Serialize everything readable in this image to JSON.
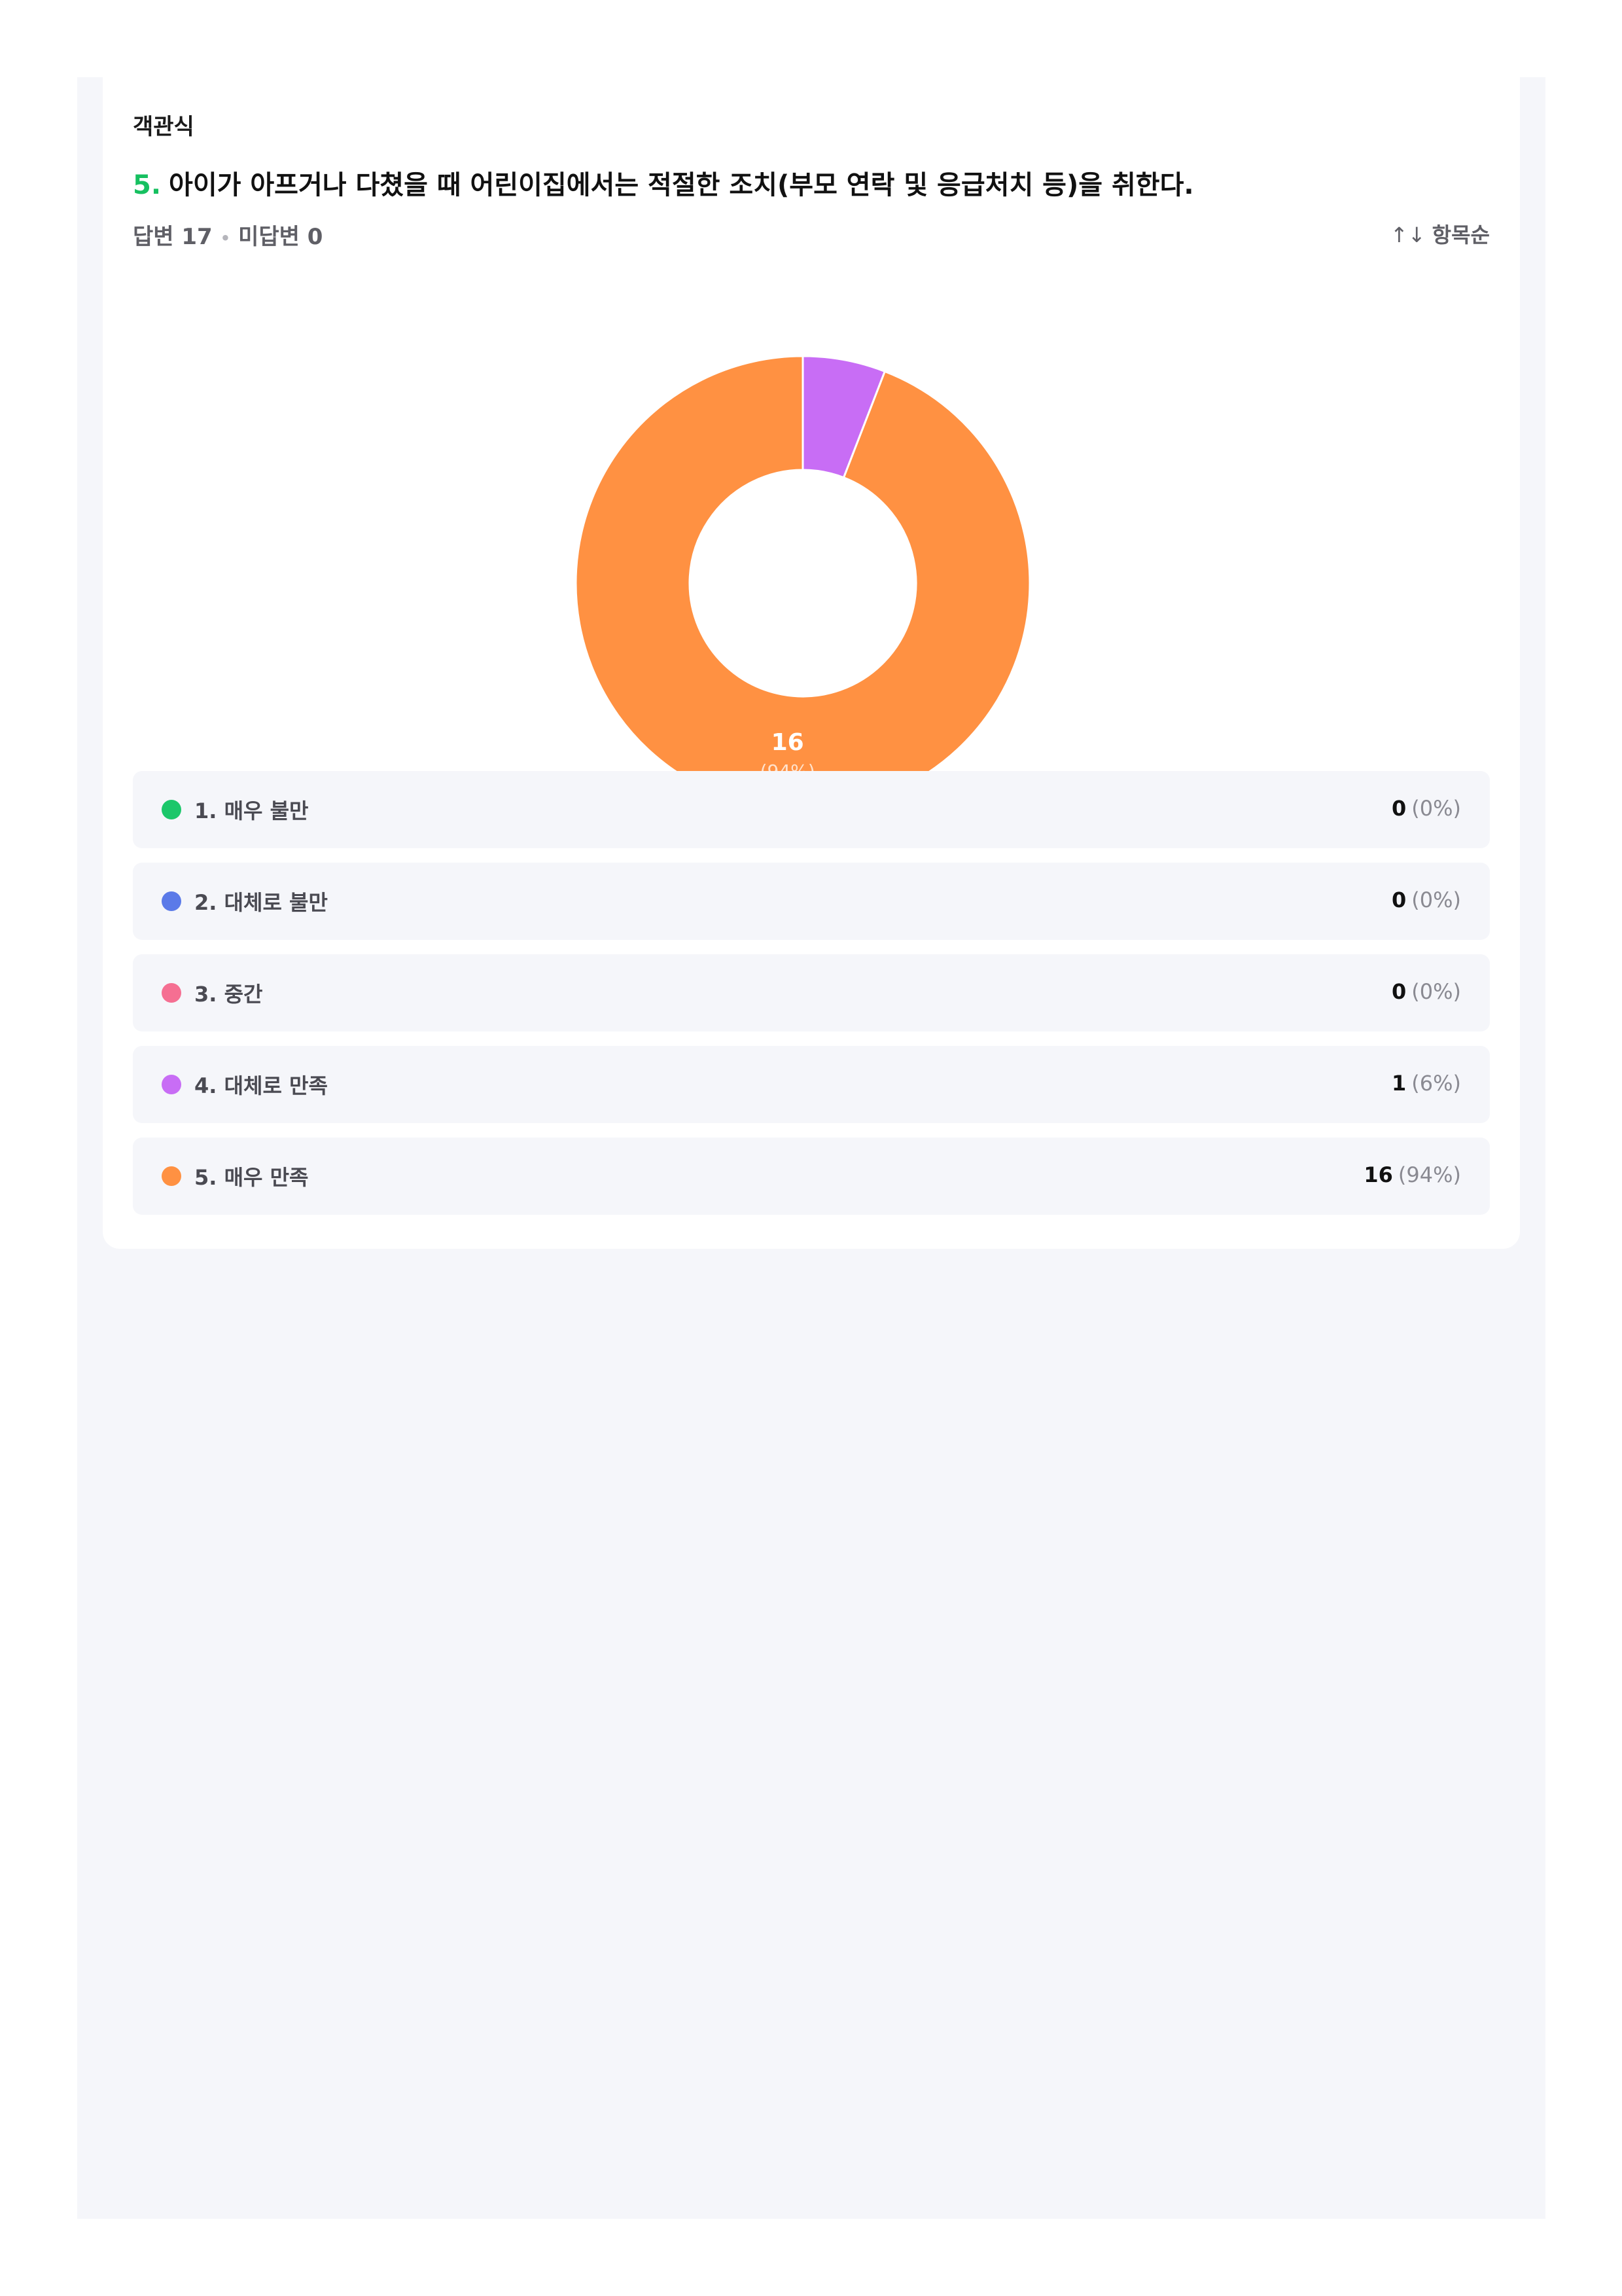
{
  "question": {
    "type": "객관식",
    "number": "5.",
    "text": "아이가 아프거나 다쳤을 때 어린이집에서는 적절한 조치(부모 연락 및 응급처치 등)을 취한다.",
    "answered": "답변 17",
    "separator": "•",
    "unanswered": "미답변 0",
    "sort_label": "항목순",
    "sort_icon": "↑↓"
  },
  "chart_data": {
    "type": "pie",
    "donut": true,
    "categories": [
      "1. 매우 불만",
      "2. 대체로 불만",
      "3. 중간",
      "4. 대체로 만족",
      "5. 매우 만족"
    ],
    "values": [
      0,
      0,
      0,
      1,
      16
    ],
    "percents": [
      "(0%)",
      "(0%)",
      "(0%)",
      "(6%)",
      "(94%)"
    ],
    "colors": [
      "#1cc76a",
      "#5b7ae8",
      "#f56f92",
      "#c86df5",
      "#ff9142"
    ],
    "slice_labels": [
      {
        "index": 4,
        "value": "16",
        "percent": "(94%)"
      }
    ]
  },
  "legend": [
    {
      "label": "1. 매우 불만",
      "count": "0",
      "percent": "(0%)"
    },
    {
      "label": "2. 대체로 불만",
      "count": "0",
      "percent": "(0%)"
    },
    {
      "label": "3. 중간",
      "count": "0",
      "percent": "(0%)"
    },
    {
      "label": "4. 대체로 만족",
      "count": "1",
      "percent": "(6%)"
    },
    {
      "label": "5. 매우 만족",
      "count": "16",
      "percent": "(94%)"
    }
  ]
}
